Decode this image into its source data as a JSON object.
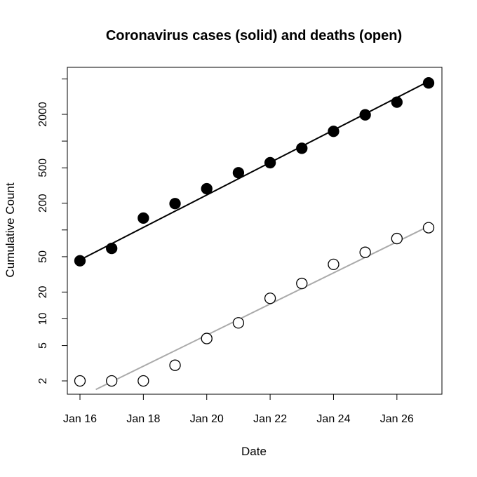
{
  "chart_data": {
    "type": "scatter",
    "title": "Coronavirus cases (solid) and deaths (open)",
    "xlabel": "Date",
    "ylabel": "Cumulative Count",
    "y_scale": "log",
    "xlim": [
      16,
      27
    ],
    "ylim": [
      1.6,
      5500
    ],
    "x_ticks": [
      {
        "value": 16,
        "label": "Jan 16"
      },
      {
        "value": 18,
        "label": "Jan 18"
      },
      {
        "value": 20,
        "label": "Jan 20"
      },
      {
        "value": 22,
        "label": "Jan 22"
      },
      {
        "value": 24,
        "label": "Jan 24"
      },
      {
        "value": 26,
        "label": "Jan 26"
      }
    ],
    "y_ticks": [
      {
        "value": 2,
        "label": "2"
      },
      {
        "value": 5,
        "label": "5"
      },
      {
        "value": 10,
        "label": "10"
      },
      {
        "value": 20,
        "label": "20"
      },
      {
        "value": 50,
        "label": "50"
      },
      {
        "value": 200,
        "label": "200"
      },
      {
        "value": 500,
        "label": "500"
      },
      {
        "value": 2000,
        "label": "2000"
      }
    ],
    "y_minor_ticks": [
      100,
      1000,
      5000
    ],
    "grid": false,
    "series": [
      {
        "marker": "filled-circle",
        "color": "#000000",
        "x": [
          16,
          17,
          18,
          19,
          20,
          21,
          22,
          23,
          24,
          25,
          26,
          27
        ],
        "y": [
          45,
          62,
          136,
          198,
          291,
          440,
          571,
          830,
          1287,
          1975,
          2744,
          4515
        ],
        "fit_line": {
          "x": [
            16,
            27
          ],
          "y": [
            46,
            4700
          ],
          "color": "#000000"
        }
      },
      {
        "marker": "open-circle",
        "color": "#000000",
        "x": [
          16,
          17,
          18,
          19,
          20,
          21,
          22,
          23,
          24,
          25,
          26,
          27
        ],
        "y": [
          2,
          2,
          2,
          3,
          6,
          9,
          17,
          25,
          41,
          56,
          80,
          106
        ],
        "fit_line": {
          "x": [
            16.5,
            27
          ],
          "y": [
            1.6,
            110
          ],
          "color": "#aaaaaa"
        }
      }
    ]
  }
}
